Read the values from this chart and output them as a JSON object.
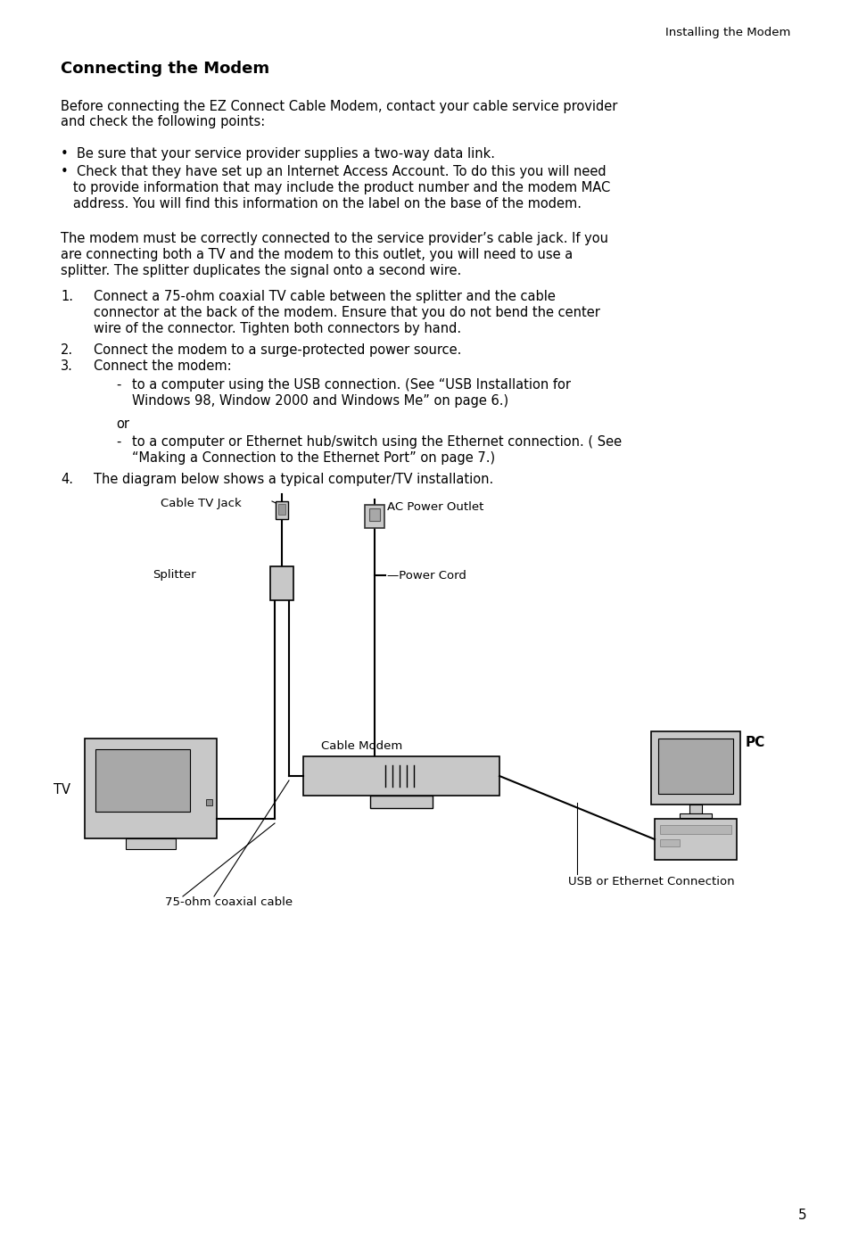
{
  "header_text": "Installing the Modem",
  "title": "Connecting the Modem",
  "para1": "Before connecting the EZ Connect Cable Modem, contact your cable service provider\nand check the following points:",
  "bullet1": "•  Be sure that your service provider supplies a two-way data link.",
  "bullet2_line1": "•  Check that they have set up an Internet Access Account. To do this you will need",
  "bullet2_line2": "   to provide information that may include the product number and the modem MAC",
  "bullet2_line3": "   address. You will find this information on the label on the base of the modem.",
  "para2_line1": "The modem must be correctly connected to the service provider’s cable jack. If you",
  "para2_line2": "are connecting both a TV and the modem to this outlet, you will need to use a",
  "para2_line3": "splitter. The splitter duplicates the signal onto a second wire.",
  "item1_num": "1.",
  "item1_line1": "Connect a 75-ohm coaxial TV cable between the splitter and the cable",
  "item1_line2": "connector at the back of the modem. Ensure that you do not bend the center",
  "item1_line3": "wire of the connector. Tighten both connectors by hand.",
  "item2_num": "2.",
  "item2_text": "Connect the modem to a surge-protected power source.",
  "item3_num": "3.",
  "item3_text": "Connect the modem:",
  "sub1_dash": "-",
  "sub1_line1": "to a computer using the USB connection. (See “USB Installation for",
  "sub1_line2": "Windows 98, Window 2000 and Windows Me” on page 6.)",
  "or_text": "or",
  "sub2_dash": "-",
  "sub2_line1": "to a computer or Ethernet hub/switch using the Ethernet connection. ( See",
  "sub2_line2": "“Making a Connection to the Ethernet Port” on page 7.)",
  "item4_num": "4.",
  "item4_text": "The diagram below shows a typical computer/TV installation.",
  "label_cable_tv_jack": "Cable TV Jack",
  "label_ac_power": "AC Power Outlet",
  "label_splitter": "Splitter",
  "label_power_cord": "—Power Cord",
  "label_pc": "PC",
  "label_tv": "TV",
  "label_cable_modem": "Cable Modem",
  "label_coaxial": "75-ohm coaxial cable",
  "label_usb_eth": "USB or Ethernet Connection",
  "page_number": "5",
  "bg_color": "#ffffff",
  "text_color": "#000000",
  "gray_light": "#c8c8c8",
  "gray_medium": "#a8a8a8",
  "gray_dark": "#888888"
}
